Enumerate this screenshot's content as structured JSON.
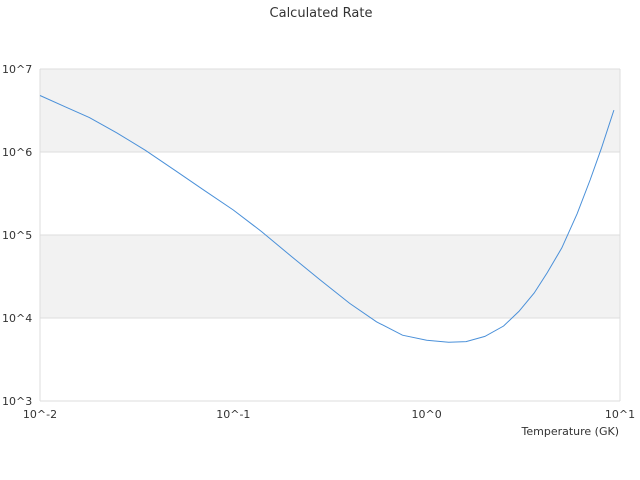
{
  "chart_data": {
    "type": "line",
    "title": "Calculated Rate",
    "xlabel": "Temperature (GK)",
    "ylabel": "",
    "x_scale": "log",
    "y_scale": "log",
    "xlim": [
      0.01,
      10
    ],
    "ylim": [
      1000,
      10000000
    ],
    "x_ticks": [
      0.01,
      0.1,
      1,
      10
    ],
    "y_ticks": [
      1000,
      10000,
      100000,
      1000000,
      10000000
    ],
    "x_tick_labels": [
      "10^-2",
      "10^-1",
      "10^0",
      "10^1"
    ],
    "y_tick_labels": [
      "10^3",
      "10^4",
      "10^5",
      "10^6",
      "10^7"
    ],
    "grid": "horizontal bands",
    "band_color": "#f2f2f2",
    "line_color": "#4a90d9",
    "series": [
      {
        "x": [
          0.01,
          0.0135,
          0.018,
          0.025,
          0.035,
          0.05,
          0.07,
          0.1,
          0.14,
          0.2,
          0.28,
          0.4,
          0.55,
          0.75,
          1.0,
          1.3,
          1.6,
          2.0,
          2.5,
          3.0,
          3.6,
          4.2,
          5.0,
          6.0,
          7.0,
          8.0,
          9.3
        ],
        "y": [
          4800000,
          3500000,
          2600000,
          1700000,
          1050000,
          600000,
          350000,
          200000,
          110000,
          55000,
          29000,
          15000,
          9000,
          6200,
          5400,
          5100,
          5200,
          6000,
          8000,
          12000,
          20000,
          35000,
          70000,
          180000,
          460000,
          1100000,
          3200000
        ]
      }
    ]
  }
}
